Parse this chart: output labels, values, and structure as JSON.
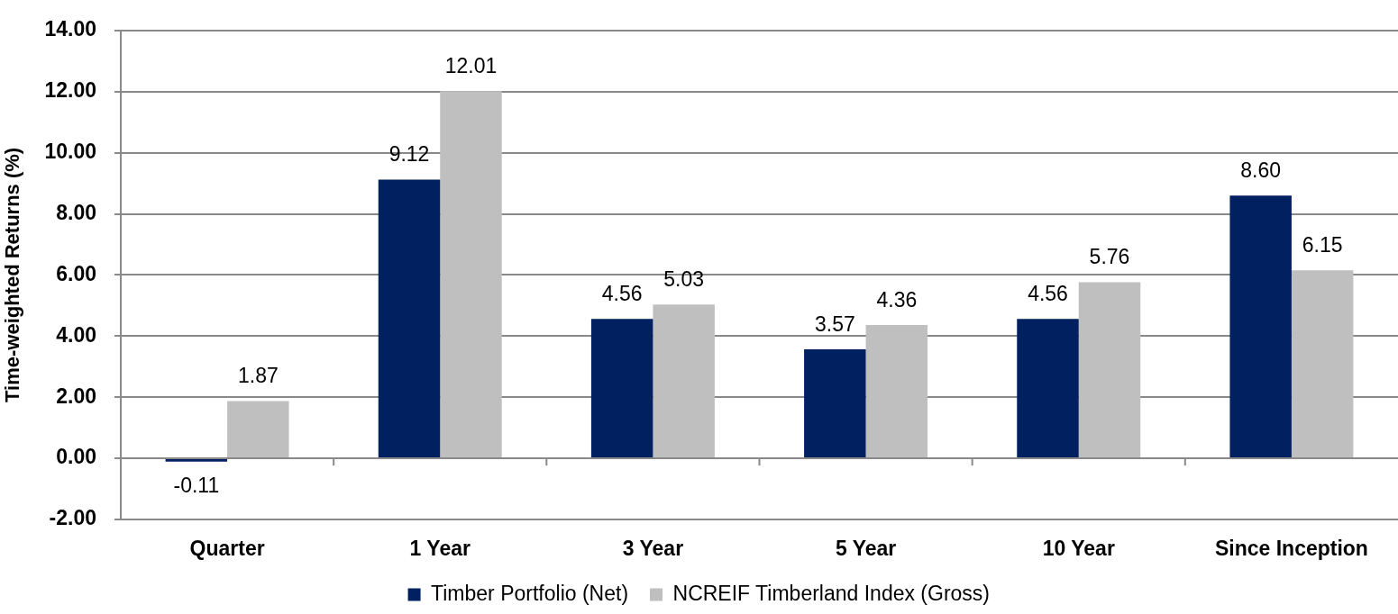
{
  "chart_data": {
    "type": "bar",
    "ylabel": "Time-weighted Returns (%)",
    "categories": [
      "Quarter",
      "1 Year",
      "3 Year",
      "5 Year",
      "10 Year",
      "Since Inception"
    ],
    "series": [
      {
        "name": "Timber Portfolio (Net)",
        "color": "#002060",
        "values": [
          -0.11,
          9.12,
          4.56,
          3.57,
          4.56,
          8.6
        ],
        "value_labels": [
          "-0.11",
          "9.12",
          "4.56",
          "3.57",
          "4.56",
          "8.60"
        ]
      },
      {
        "name": "NCREIF Timberland Index (Gross)",
        "color": "#bfbfbf",
        "values": [
          1.87,
          12.01,
          5.03,
          4.36,
          5.76,
          6.15
        ],
        "value_labels": [
          "1.87",
          "12.01",
          "5.03",
          "4.36",
          "5.76",
          "6.15"
        ]
      }
    ],
    "ylim": [
      -2,
      14
    ],
    "yticks": [
      {
        "value": -2,
        "label": "-2.00"
      },
      {
        "value": 0,
        "label": "0.00"
      },
      {
        "value": 2,
        "label": "2.00"
      },
      {
        "value": 4,
        "label": "4.00"
      },
      {
        "value": 6,
        "label": "6.00"
      },
      {
        "value": 8,
        "label": "8.00"
      },
      {
        "value": 10,
        "label": "10.00"
      },
      {
        "value": 12,
        "label": "12.00"
      },
      {
        "value": 14,
        "label": "14.00"
      }
    ],
    "grid": "y",
    "legend": "bottom"
  }
}
